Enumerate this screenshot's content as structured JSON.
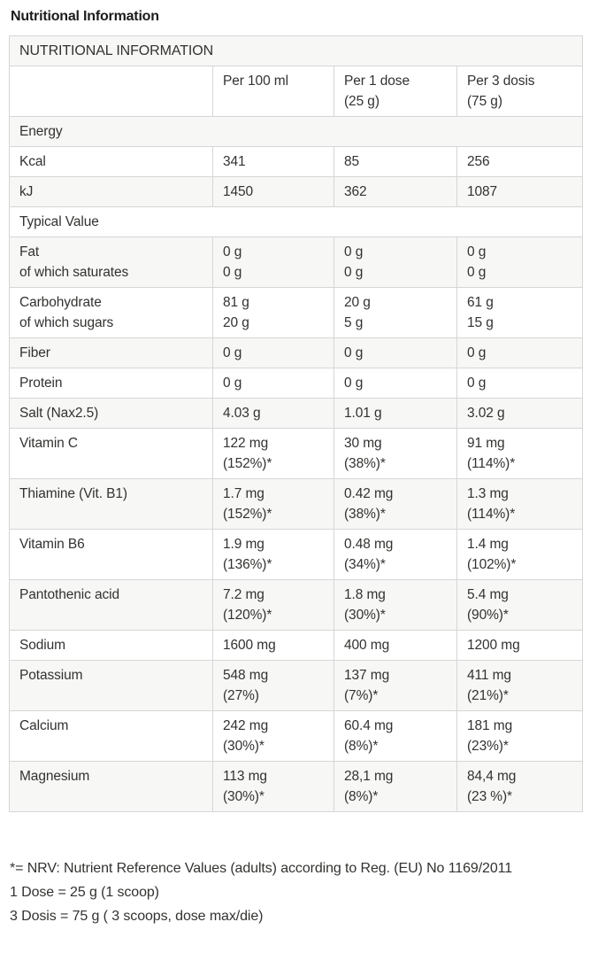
{
  "page": {
    "title": "Nutritional Information"
  },
  "colors": {
    "stripe": "#f7f7f6",
    "border": "#d6d6d6",
    "text": "#333230",
    "title": "#1b1b1b"
  },
  "table": {
    "header": "NUTRITIONAL INFORMATION",
    "columns": [
      [
        ""
      ],
      [
        "Per 100 ml"
      ],
      [
        "Per 1 dose",
        "(25 g)"
      ],
      [
        "Per 3 dosis",
        "(75 g)"
      ]
    ],
    "rows": [
      {
        "type": "section",
        "label": "Energy"
      },
      {
        "type": "data",
        "label": [
          "Kcal"
        ],
        "values": [
          [
            "341"
          ],
          [
            "85"
          ],
          [
            "256"
          ]
        ]
      },
      {
        "type": "data",
        "label": [
          "kJ"
        ],
        "values": [
          [
            "1450"
          ],
          [
            "362"
          ],
          [
            "1087"
          ]
        ]
      },
      {
        "type": "section",
        "label": "Typical Value"
      },
      {
        "type": "data",
        "label": [
          "Fat",
          "of which saturates"
        ],
        "values": [
          [
            "0 g",
            "0 g"
          ],
          [
            "0 g",
            "0 g"
          ],
          [
            "0 g",
            "0 g"
          ]
        ]
      },
      {
        "type": "data",
        "label": [
          "Carbohydrate",
          "of which sugars"
        ],
        "values": [
          [
            "81 g",
            "20 g"
          ],
          [
            "20 g",
            "5 g"
          ],
          [
            "61 g",
            "15 g"
          ]
        ]
      },
      {
        "type": "data",
        "label": [
          "Fiber"
        ],
        "values": [
          [
            "0 g"
          ],
          [
            "0 g"
          ],
          [
            "0 g"
          ]
        ]
      },
      {
        "type": "data",
        "label": [
          "Protein"
        ],
        "values": [
          [
            "0 g"
          ],
          [
            "0 g"
          ],
          [
            "0 g"
          ]
        ]
      },
      {
        "type": "data",
        "label": [
          "Salt (Nax2.5)"
        ],
        "values": [
          [
            "4.03 g"
          ],
          [
            "1.01 g"
          ],
          [
            "3.02 g"
          ]
        ]
      },
      {
        "type": "data",
        "label": [
          "Vitamin C"
        ],
        "values": [
          [
            "122 mg",
            "(152%)*"
          ],
          [
            "30 mg",
            "(38%)*"
          ],
          [
            "91 mg",
            "(114%)*"
          ]
        ]
      },
      {
        "type": "data",
        "label": [
          "Thiamine (Vit. B1)"
        ],
        "values": [
          [
            "1.7 mg",
            "(152%)*"
          ],
          [
            "0.42 mg",
            "(38%)*"
          ],
          [
            "1.3 mg",
            "(114%)*"
          ]
        ]
      },
      {
        "type": "data",
        "label": [
          "Vitamin B6"
        ],
        "values": [
          [
            "1.9 mg",
            "(136%)*"
          ],
          [
            "0.48 mg",
            "(34%)*"
          ],
          [
            "1.4 mg",
            "(102%)*"
          ]
        ]
      },
      {
        "type": "data",
        "label": [
          "Pantothenic acid"
        ],
        "values": [
          [
            "7.2 mg",
            "(120%)*"
          ],
          [
            "1.8 mg",
            "(30%)*"
          ],
          [
            "5.4 mg",
            "(90%)*"
          ]
        ]
      },
      {
        "type": "data",
        "label": [
          "Sodium"
        ],
        "values": [
          [
            "1600 mg"
          ],
          [
            "400 mg"
          ],
          [
            "1200 mg"
          ]
        ]
      },
      {
        "type": "data",
        "label": [
          "Potassium"
        ],
        "values": [
          [
            "548 mg",
            "(27%)"
          ],
          [
            "137 mg",
            "(7%)*"
          ],
          [
            "411 mg",
            "(21%)*"
          ]
        ]
      },
      {
        "type": "data",
        "label": [
          "Calcium"
        ],
        "values": [
          [
            "242 mg",
            "(30%)*"
          ],
          [
            "60.4 mg",
            "(8%)*"
          ],
          [
            "181 mg",
            "(23%)*"
          ]
        ]
      },
      {
        "type": "data",
        "label": [
          "Magnesium"
        ],
        "values": [
          [
            "113 mg",
            "(30%)*"
          ],
          [
            "28,1 mg",
            "(8%)*"
          ],
          [
            "84,4 mg",
            "(23 %)*"
          ]
        ]
      }
    ]
  },
  "footnotes": [
    "*= NRV: Nutrient Reference Values (adults) according to Reg. (EU) No 1169/2011",
    "1 Dose = 25 g (1 scoop)",
    "3 Dosis = 75 g ( 3 scoops, dose max/die)"
  ]
}
